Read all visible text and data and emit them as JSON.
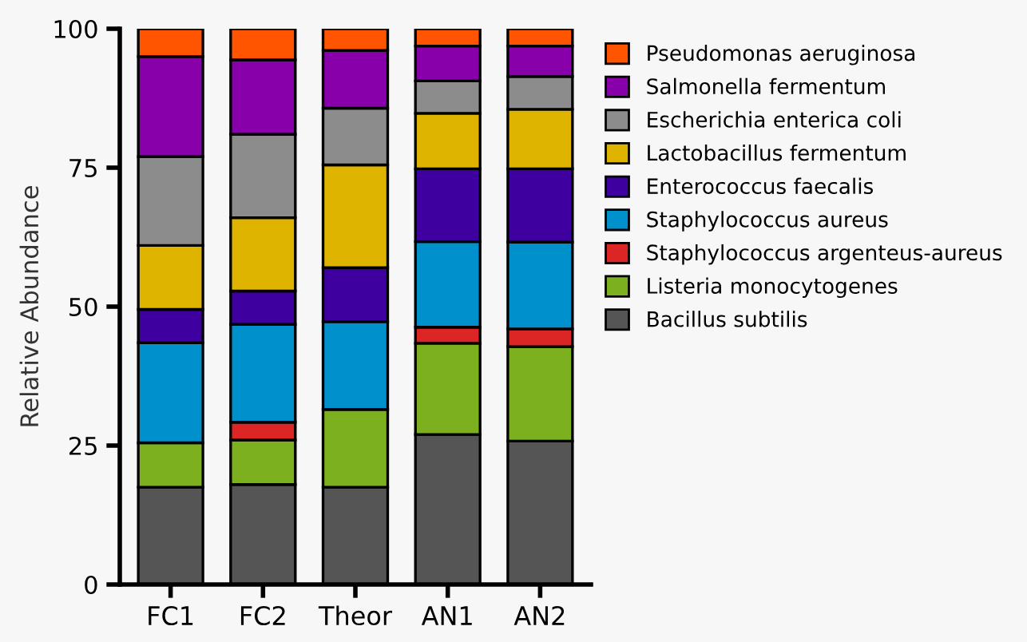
{
  "chart_data": {
    "type": "bar",
    "stacked": true,
    "ylabel": "Relative Abundance",
    "categories": [
      "FC1",
      "FC2",
      "Theor",
      "AN1",
      "AN2"
    ],
    "ylim": [
      0,
      100
    ],
    "yticks": [
      0,
      25,
      50,
      75,
      100
    ],
    "grid": false,
    "legend": "right",
    "series": [
      {
        "name": "Bacillus subtilis",
        "color": "#555555",
        "values": [
          17.5,
          18,
          17.5,
          27,
          25.8
        ]
      },
      {
        "name": "Listeria monocytogenes",
        "color": "#7cb01f",
        "values": [
          8,
          8,
          14,
          16.4,
          17
        ]
      },
      {
        "name": "Staphylococcus argenteus-aureus",
        "color": "#dc2626",
        "values": [
          0,
          3.2,
          0,
          2.9,
          3.2
        ]
      },
      {
        "name": "Staphylococcus aureus",
        "color": "#0090cc",
        "values": [
          18,
          17.6,
          15.8,
          15.4,
          15.6
        ]
      },
      {
        "name": "Enterococcus faecalis",
        "color": "#3f00a0",
        "values": [
          6,
          6,
          9.7,
          13.1,
          13.2
        ]
      },
      {
        "name": "Lactobacillus fermentum",
        "color": "#deb400",
        "values": [
          11.5,
          13.2,
          18.5,
          10,
          10.7
        ]
      },
      {
        "name": "Escherichia enterica coli",
        "color": "#8c8c8c",
        "values": [
          16,
          15,
          10.2,
          5.8,
          5.9
        ]
      },
      {
        "name": "Salmonella fermentum",
        "color": "#8800aa",
        "values": [
          18,
          13.4,
          10.4,
          6.3,
          5.5
        ]
      },
      {
        "name": "Pseudomonas aeruginosa",
        "color": "#ff5500",
        "values": [
          5,
          5.6,
          3.9,
          3.1,
          3.1
        ]
      }
    ]
  }
}
